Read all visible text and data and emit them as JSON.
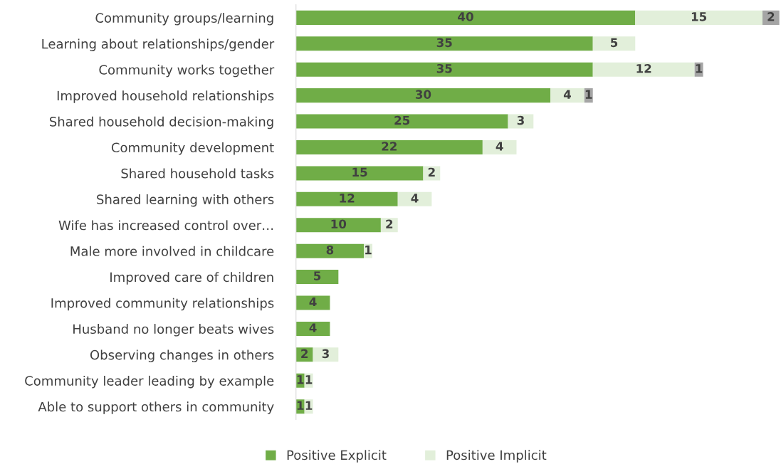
{
  "chart_data": {
    "type": "bar",
    "orientation": "horizontal",
    "stacked": true,
    "data_labels": true,
    "grid": false,
    "legend": "bottom",
    "categories": [
      "Community groups/learning",
      "Learning about relationships/gender",
      "Community works together",
      "Improved household relationships",
      "Shared household decision-making",
      "Community development",
      "Shared household tasks",
      "Shared learning with others",
      "Wife has increased control over…",
      "Male more involved in childcare",
      "Improved care of children",
      "Improved community relationships",
      "Husband no longer beats wives",
      "Observing changes in others",
      "Community leader leading by example",
      "Able to support others in community"
    ],
    "series": [
      {
        "name": "Positive Explicit",
        "color": "#70ad47",
        "values": [
          40,
          35,
          35,
          30,
          25,
          22,
          15,
          12,
          10,
          8,
          5,
          4,
          4,
          2,
          1,
          1
        ]
      },
      {
        "name": "Positive Implicit",
        "color": "#e2efda",
        "values": [
          15,
          5,
          12,
          4,
          3,
          4,
          2,
          4,
          2,
          1,
          null,
          null,
          null,
          3,
          1,
          1
        ]
      },
      {
        "color": "#a5a5a5",
        "values": [
          2,
          null,
          1,
          1,
          null,
          null,
          null,
          null,
          null,
          null,
          null,
          null,
          null,
          null,
          null,
          null
        ]
      }
    ]
  }
}
